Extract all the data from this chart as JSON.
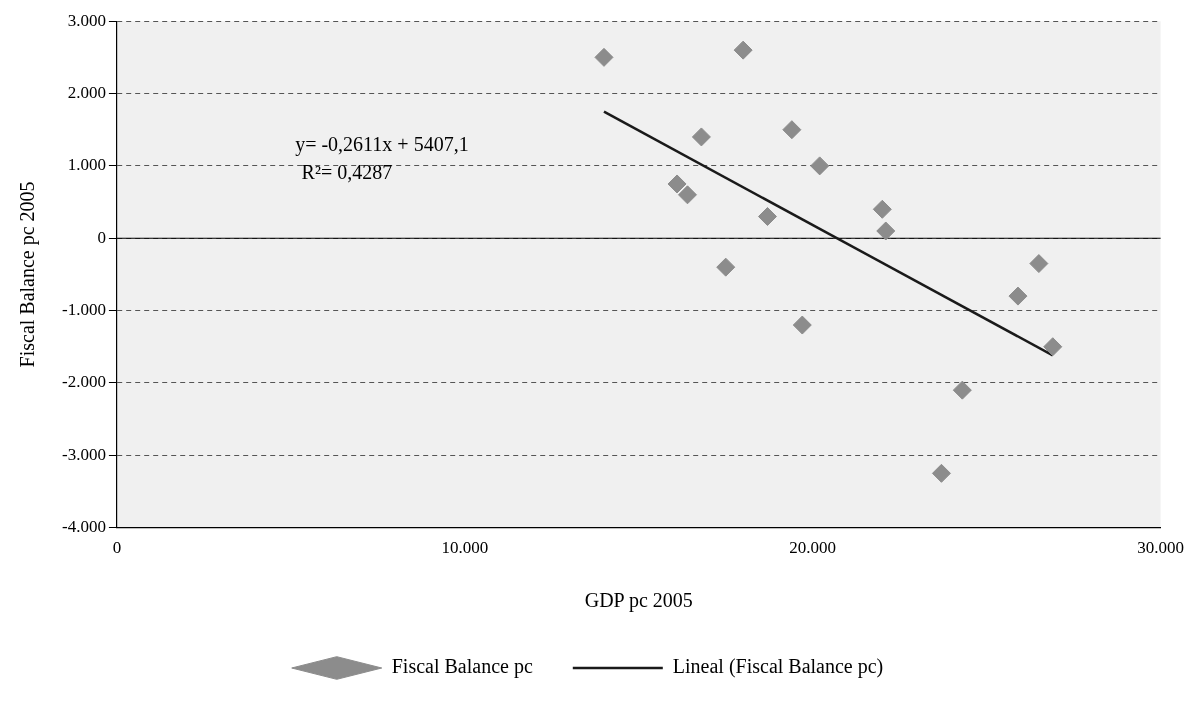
{
  "chart_data": {
    "type": "scatter",
    "xlabel": "GDP pc 2005",
    "ylabel": "Fiscal Balance pc 2005",
    "xlim": [
      0,
      30000
    ],
    "xticks": [
      0,
      {
        "value": 10000,
        "label": "10.000"
      },
      {
        "value": 20000,
        "label": "20.000"
      },
      {
        "value": 30000,
        "label": "30.000"
      }
    ],
    "ylim": [
      -4000,
      3000
    ],
    "yticks": [
      {
        "value": -4000,
        "label": "-4.000"
      },
      {
        "value": -3000,
        "label": "-3.000"
      },
      {
        "value": -2000,
        "label": "-2.000"
      },
      {
        "value": -1000,
        "label": "-1.000"
      },
      0,
      {
        "value": 1000,
        "label": "1.000"
      },
      {
        "value": 2000,
        "label": "2.000"
      },
      {
        "value": 3000,
        "label": "3.000"
      }
    ],
    "series": [
      {
        "name": "Fiscal Balance pc",
        "color": "#8c8c8c",
        "marker": "diamond",
        "x": [
          14000,
          18000,
          16800,
          19400,
          20200,
          16100,
          16400,
          18700,
          17500,
          19700,
          22000,
          22100,
          23700,
          24300,
          25900,
          26500,
          26900
        ],
        "values": [
          2500,
          2600,
          1400,
          1500,
          1000,
          750,
          600,
          300,
          -400,
          -1200,
          400,
          100,
          -3250,
          -2100,
          -800,
          -350,
          -1500
        ]
      },
      {
        "name": "Lineal (Fiscal Balance pc)",
        "type": "line",
        "color": "#1a1a1a",
        "marker": "none",
        "line_style": "solid",
        "x": [
          14000,
          26900
        ],
        "values": [
          1750,
          -1620
        ]
      }
    ],
    "annotations": [
      "y= -0,2611x + 5407,1",
      "R²= 0,4287"
    ],
    "ref_lines": [
      {
        "axis": "y",
        "value": 0,
        "color": "#000000",
        "line_style": "solid"
      }
    ],
    "grid": "y",
    "legend": "bottom"
  }
}
